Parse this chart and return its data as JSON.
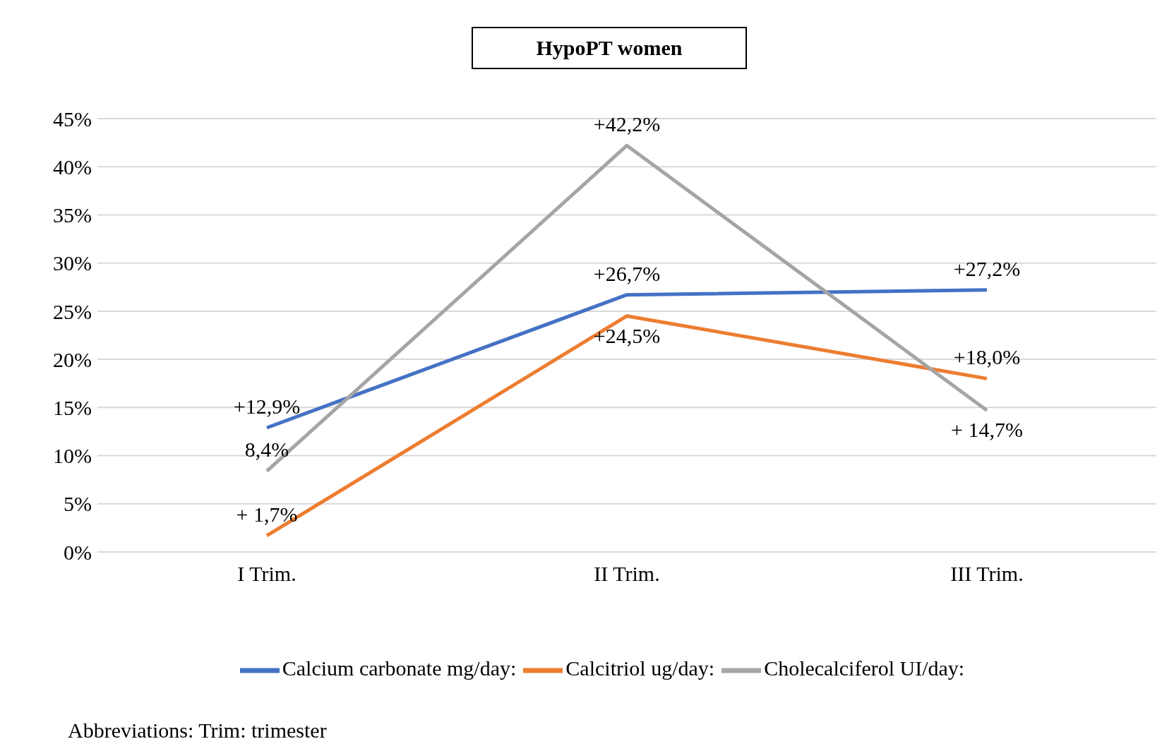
{
  "chart_data": {
    "type": "line",
    "title": "HypoPT women",
    "categories": [
      "I Trim.",
      "II Trim.",
      "III Trim."
    ],
    "series": [
      {
        "name": "Calcium carbonate  mg/day:",
        "color": "#4472c4",
        "values": [
          12.9,
          26.7,
          27.2
        ],
        "value_labels": [
          "+12,9%",
          "+26,7%",
          "+27,2%"
        ]
      },
      {
        "name": "Calcitriol ug/day:",
        "color": "#ed7d31",
        "values": [
          1.7,
          24.5,
          18.0
        ],
        "value_labels": [
          "+ 1,7%",
          "+24,5%",
          "+18,0%"
        ]
      },
      {
        "name": "Cholecalciferol UI/day:",
        "color": "#a5a5a5",
        "values": [
          8.4,
          42.2,
          14.7
        ],
        "value_labels": [
          "8,4%",
          "+42,2%",
          "+ 14,7%"
        ]
      }
    ],
    "ylim": [
      0,
      45
    ],
    "yticks": [
      {
        "value": 0,
        "label": "0%"
      },
      {
        "value": 5,
        "label": "5%"
      },
      {
        "value": 10,
        "label": "10%"
      },
      {
        "value": 15,
        "label": "15%"
      },
      {
        "value": 20,
        "label": "20%"
      },
      {
        "value": 25,
        "label": "25%"
      },
      {
        "value": 30,
        "label": "30%"
      },
      {
        "value": 35,
        "label": "35%"
      },
      {
        "value": 40,
        "label": "40%"
      },
      {
        "value": 45,
        "label": "45%"
      }
    ],
    "grid": "y",
    "legend": "bottom",
    "marker": "none",
    "line_style": "solid",
    "annotations": [
      "Abbreviations: Trim: trimester"
    ]
  }
}
